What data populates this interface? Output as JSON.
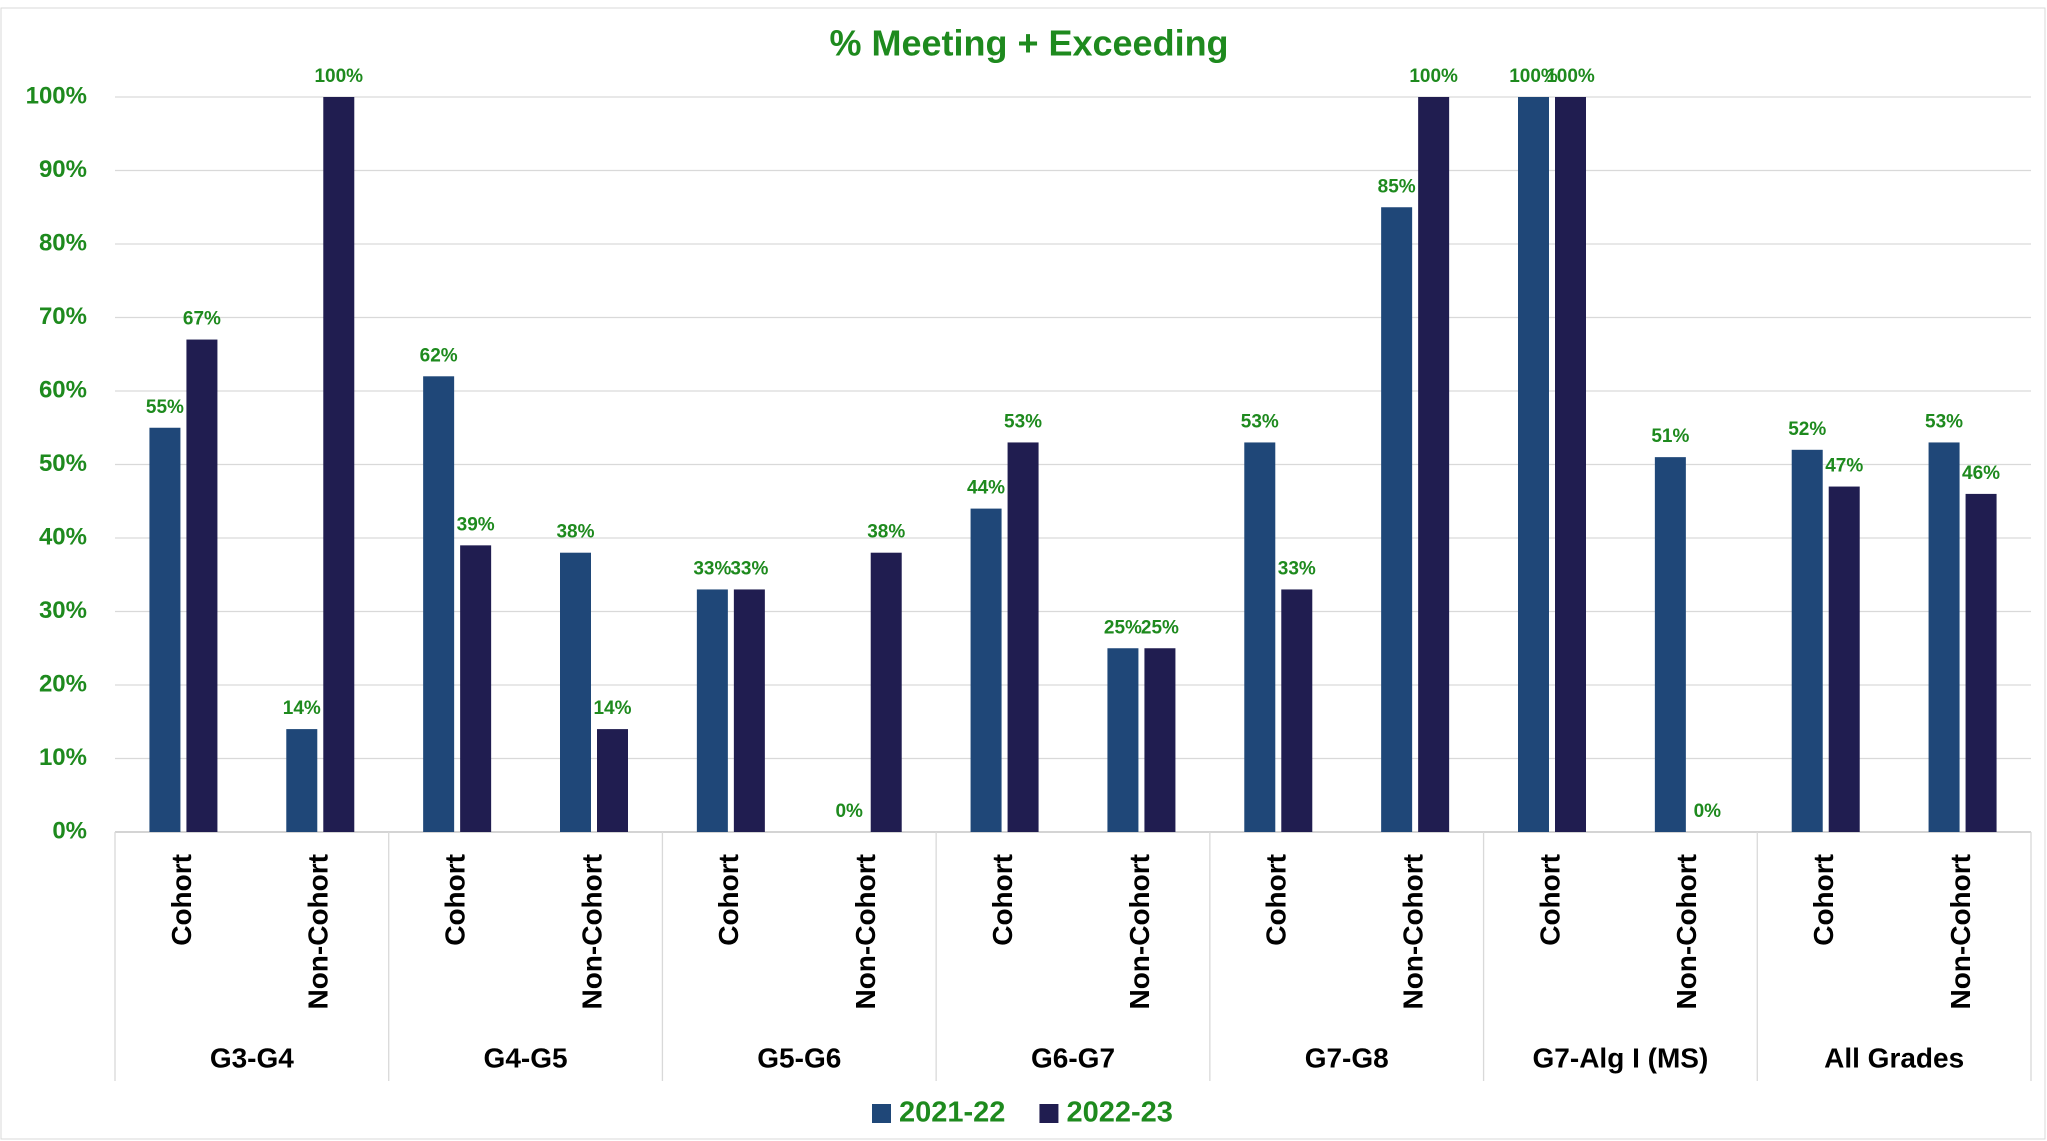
{
  "chart_data": {
    "type": "bar",
    "title": "% Meeting + Exceeding",
    "categories": [
      "Cohort",
      "Non-Cohort",
      "Cohort",
      "Non-Cohort",
      "Cohort",
      "Non-Cohort",
      "Cohort",
      "Non-Cohort",
      "Cohort",
      "Non-Cohort",
      "Cohort",
      "Non-Cohort",
      "Cohort",
      "Non-Cohort"
    ],
    "groups": [
      "G3-G4",
      "G4-G5",
      "G5-G6",
      "G6-G7",
      "G7-G8",
      "G7-Alg I (MS)",
      "All Grades"
    ],
    "series": [
      {
        "name": "2021-22",
        "color": "#1f4778",
        "values": [
          55,
          14,
          62,
          38,
          33,
          0,
          44,
          25,
          53,
          85,
          100,
          51,
          52,
          53
        ],
        "value_labels": [
          "55%",
          "14%",
          "62%",
          "38%",
          "33%",
          "0%",
          "44%",
          "25%",
          "53%",
          "85%",
          "100%",
          "51%",
          "52%",
          "53%"
        ]
      },
      {
        "name": "2022-23",
        "color": "#201d50",
        "values": [
          67,
          100,
          39,
          14,
          33,
          38,
          53,
          25,
          33,
          100,
          100,
          0,
          47,
          46
        ],
        "value_labels": [
          "67%",
          "100%",
          "39%",
          "14%",
          "33%",
          "38%",
          "53%",
          "25%",
          "33%",
          "100%",
          "100%",
          "0%",
          "47%",
          "46%"
        ]
      }
    ],
    "ylim": [
      0,
      100
    ],
    "yticks": [
      {
        "value": 0,
        "label": "0%"
      },
      {
        "value": 10,
        "label": "10%"
      },
      {
        "value": 20,
        "label": "20%"
      },
      {
        "value": 30,
        "label": "30%"
      },
      {
        "value": 40,
        "label": "40%"
      },
      {
        "value": 50,
        "label": "50%"
      },
      {
        "value": 60,
        "label": "60%"
      },
      {
        "value": 70,
        "label": "70%"
      },
      {
        "value": 80,
        "label": "80%"
      },
      {
        "value": 90,
        "label": "90%"
      },
      {
        "value": 100,
        "label": "100%"
      }
    ],
    "grid": true,
    "legend": "bottom"
  }
}
